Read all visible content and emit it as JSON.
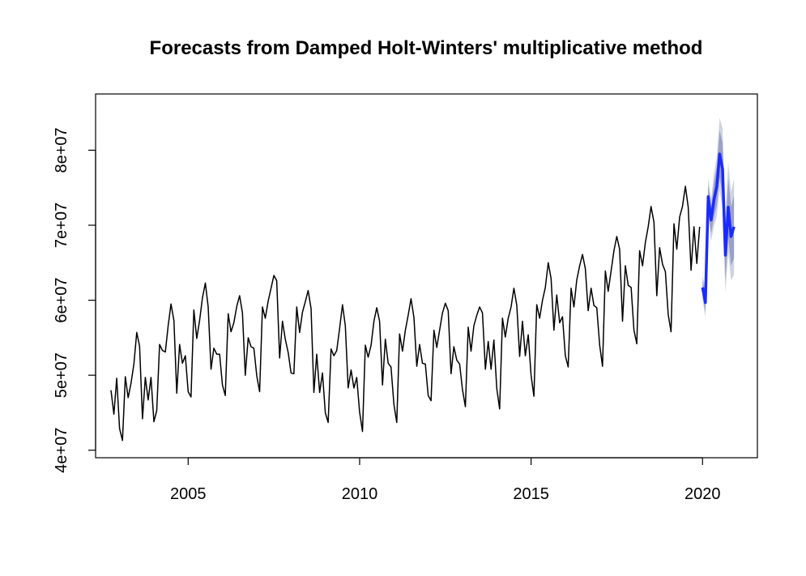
{
  "chart_data": {
    "type": "line",
    "title": "Forecasts from Damped Holt-Winters' multiplicative method",
    "xlabel": "",
    "ylabel": "",
    "xlim": [
      2002.3,
      2021.6
    ],
    "ylim": [
      39000000,
      87500000
    ],
    "x_ticks": [
      2005,
      2010,
      2015,
      2020
    ],
    "x_tick_labels": [
      "2005",
      "2010",
      "2015",
      "2020"
    ],
    "y_ticks": [
      40000000,
      50000000,
      60000000,
      70000000,
      80000000
    ],
    "y_tick_labels": [
      "4e+07",
      "5e+07",
      "6e+07",
      "7e+07",
      "8e+07"
    ],
    "grid": false,
    "legend": "none",
    "colors": {
      "history": "#000000",
      "forecast": "#1a2bff",
      "band_80": "#9aa0c8",
      "band_95": "#cfd2df"
    },
    "history": {
      "start": 2002.75,
      "step": 0.08333,
      "values": [
        48000000,
        44800000,
        49600000,
        42900000,
        41300000,
        49800000,
        47000000,
        48900000,
        51500000,
        55700000,
        53900000,
        44200000,
        49700000,
        46700000,
        49700000,
        43800000,
        45300000,
        54100000,
        53300000,
        53100000,
        56600000,
        59500000,
        57300000,
        47600000,
        54100000,
        51600000,
        52600000,
        47800000,
        47100000,
        58700000,
        54900000,
        57300000,
        60300000,
        62300000,
        59100000,
        50800000,
        53600000,
        52800000,
        52800000,
        48700000,
        47300000,
        58200000,
        55800000,
        57000000,
        59200000,
        60600000,
        58300000,
        50000000,
        55000000,
        53800000,
        53600000,
        49900000,
        47800000,
        59100000,
        57600000,
        59900000,
        61600000,
        63300000,
        62600000,
        52300000,
        57200000,
        54800000,
        53000000,
        50300000,
        50200000,
        59100000,
        55700000,
        58400000,
        59800000,
        61300000,
        58900000,
        47700000,
        52800000,
        47700000,
        50300000,
        45000000,
        43700000,
        53500000,
        52600000,
        53300000,
        56200000,
        59400000,
        56600000,
        48300000,
        50700000,
        48300000,
        49700000,
        45100000,
        42500000,
        54000000,
        52400000,
        54000000,
        57200000,
        59000000,
        57200000,
        48700000,
        54800000,
        51600000,
        51100000,
        46100000,
        43700000,
        55500000,
        53200000,
        56000000,
        58000000,
        60200000,
        57700000,
        51200000,
        54100000,
        51600000,
        51500000,
        47300000,
        46600000,
        56000000,
        53700000,
        56000000,
        58300000,
        59600000,
        58600000,
        50200000,
        53800000,
        52000000,
        51500000,
        48100000,
        45800000,
        56400000,
        53200000,
        56600000,
        58000000,
        59100000,
        58300000,
        50800000,
        54500000,
        50800000,
        54700000,
        48200000,
        45500000,
        57600000,
        55100000,
        57600000,
        59100000,
        61600000,
        59300000,
        52500000,
        57200000,
        52600000,
        55400000,
        50000000,
        47200000,
        59400000,
        57600000,
        60000000,
        61700000,
        65000000,
        62900000,
        56000000,
        60700000,
        57000000,
        57800000,
        52600000,
        51100000,
        61600000,
        59100000,
        62700000,
        64600000,
        66100000,
        64200000,
        58600000,
        61600000,
        59300000,
        59000000,
        54000000,
        51200000,
        63900000,
        61200000,
        63900000,
        66600000,
        68500000,
        66800000,
        57200000,
        64600000,
        62000000,
        61700000,
        56000000,
        54200000,
        66600000,
        64600000,
        67700000,
        69800000,
        72500000,
        70400000,
        60600000,
        67000000,
        64800000,
        63800000,
        58100000,
        55800000,
        70200000,
        66800000,
        71100000,
        72500000,
        75200000,
        72400000,
        64000000,
        69800000,
        64900000,
        69800000
      ]
    },
    "forecast": {
      "start": 2020.0,
      "step": 0.08333,
      "values": [
        61700000,
        59700000,
        73800000,
        70700000,
        73400000,
        75200000,
        79500000,
        77500000,
        66000000,
        72400000,
        68500000,
        69800000
      ],
      "lo80": [
        60700000,
        58400000,
        72200000,
        68900000,
        71100000,
        72600000,
        76400000,
        74000000,
        62700000,
        68500000,
        64600000,
        65600000
      ],
      "hi80": [
        62700000,
        61000000,
        75400000,
        72500000,
        75700000,
        77800000,
        82600000,
        81000000,
        69300000,
        76300000,
        72400000,
        74000000
      ],
      "lo95": [
        60100000,
        57700000,
        71300000,
        67900000,
        69900000,
        71200000,
        74700000,
        72100000,
        61000000,
        66400000,
        62600000,
        63400000
      ],
      "hi95": [
        63300000,
        61700000,
        76300000,
        73500000,
        76900000,
        79200000,
        84300000,
        82900000,
        71000000,
        78400000,
        74400000,
        76200000
      ]
    }
  }
}
